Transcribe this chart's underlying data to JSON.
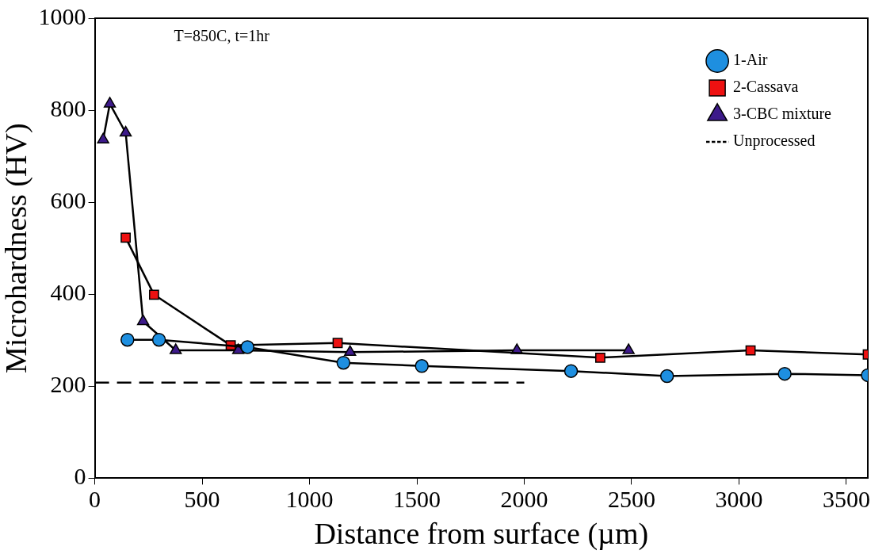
{
  "chart_data": {
    "type": "line",
    "xlabel": "Distance from surface (µm)",
    "ylabel": "Microhardness (HV)",
    "xlim": [
      0,
      3600
    ],
    "xticks": [
      0,
      500,
      1000,
      1500,
      2000,
      2500,
      3000,
      3500
    ],
    "ylim": [
      0,
      1000
    ],
    "yticks": [
      0,
      200,
      400,
      600,
      800,
      1000
    ],
    "grid": false,
    "legend": "top right",
    "annotations": [
      "T=850C, t=1hr"
    ],
    "series": [
      {
        "name": "1-Air",
        "color": "#1e8fe0",
        "marker": "circle",
        "x": [
          152,
          299,
          711,
          1158,
          1523,
          2218,
          2665,
          3213,
          3600
        ],
        "values": [
          301,
          301,
          285,
          251,
          244,
          233,
          222,
          227,
          224
        ]
      },
      {
        "name": "2-Cassava",
        "color": "#ee1111",
        "marker": "square",
        "x": [
          144,
          276,
          633,
          1131,
          2354,
          3054,
          3600
        ],
        "values": [
          523,
          399,
          289,
          294,
          262,
          278,
          269
        ]
      },
      {
        "name": "3-CBC mixture",
        "color": "#3d1a8a",
        "marker": "triangle",
        "x": [
          39,
          70,
          144,
          225,
          377,
          668,
          1189,
          1966,
          2486
        ],
        "values": [
          736,
          814,
          751,
          341,
          278,
          278,
          274,
          278,
          278
        ]
      },
      {
        "name": "Unprocessed",
        "color": "#000000",
        "marker": "none",
        "line_style": "dashed",
        "x": [
          0,
          2000
        ],
        "values": [
          208,
          208
        ]
      }
    ]
  }
}
